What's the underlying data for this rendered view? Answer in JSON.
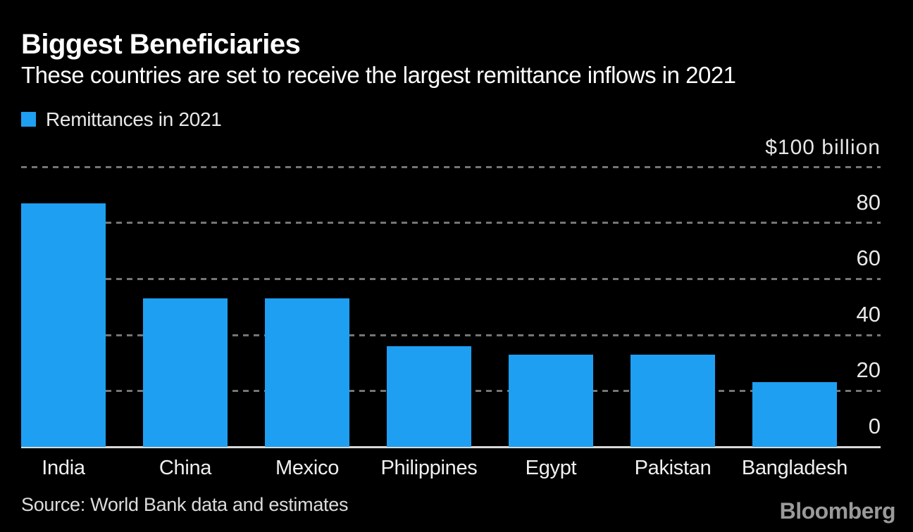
{
  "header": {
    "title": "Biggest Beneficiaries",
    "subtitle": "These countries are set to receive the largest remittance inflows in 2021"
  },
  "chart_data": {
    "type": "bar",
    "title": "Biggest Beneficiaries",
    "subtitle": "These countries are set to receive the largest remittance inflows in 2021",
    "unit_label": "$100 billion",
    "categories": [
      "India",
      "China",
      "Mexico",
      "Philippines",
      "Egypt",
      "Pakistan",
      "Bangladesh"
    ],
    "series": [
      {
        "name": "Remittances in 2021",
        "values": [
          87,
          53,
          53,
          36,
          33,
          33,
          23
        ]
      }
    ],
    "ylabel": "",
    "xlabel": "",
    "ylim": [
      0,
      100
    ],
    "gridline_ticks": [
      20,
      40,
      60,
      80,
      100
    ],
    "ytick_labels": [
      "80",
      "60",
      "40",
      "20",
      "0"
    ],
    "ytick_values": [
      80,
      60,
      40,
      20,
      0
    ],
    "grid": "horizontal-dotted",
    "legend_position": "top-left",
    "bar_color": "#1E9FF2"
  },
  "colors": {
    "background": "#000000",
    "bar": "#1E9FF2",
    "gridline": "#757575",
    "baseline": "#D9D9D9",
    "text": "#FFFFFF",
    "brand": "#9A9A9A"
  },
  "footer": {
    "source": "Source: World Bank data and estimates",
    "brand": "Bloomberg"
  }
}
